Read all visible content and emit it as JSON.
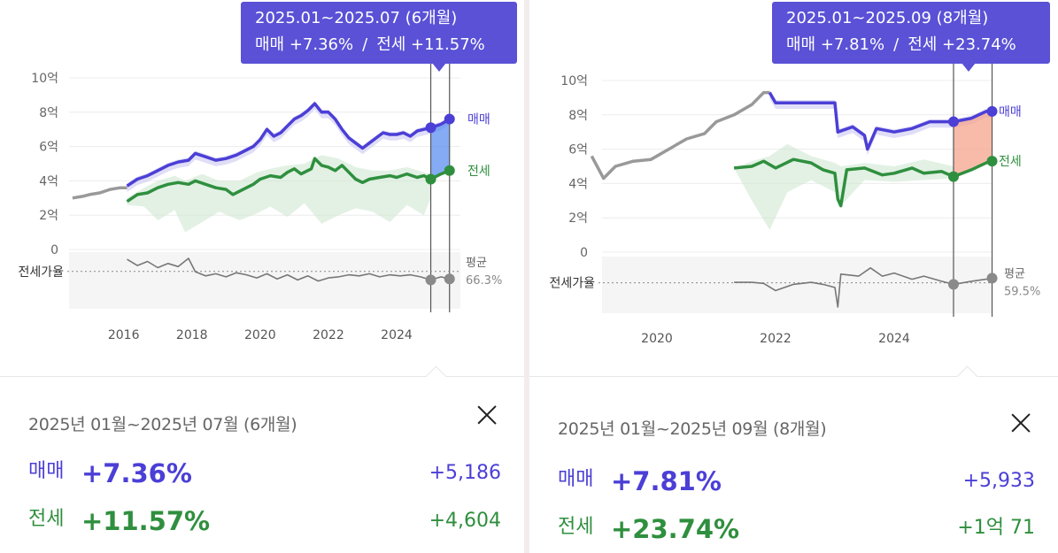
{
  "panels": [
    {
      "tooltip": {
        "period": "2025.01~2025.07 (6개월)",
        "sale_text": "매매 +7.36%",
        "separator": "/",
        "jeonse_text": "전세 +11.57%"
      },
      "card": {
        "period": "2025년 01월~2025년 07월 (6개월)",
        "sale_label": "매매",
        "sale_pct": "+7.36%",
        "sale_amount": "+5,186",
        "jeonse_label": "전세",
        "jeonse_pct": "+11.57%",
        "jeonse_amount": "+4,604"
      }
    },
    {
      "tooltip": {
        "period": "2025.01~2025.09 (8개월)",
        "sale_text": "매매 +7.81%",
        "separator": "/",
        "jeonse_text": "전세 +23.74%"
      },
      "card": {
        "period": "2025년 01월~2025년 09월 (8개월)",
        "sale_label": "매매",
        "sale_pct": "+7.81%",
        "sale_amount": "+5,933",
        "jeonse_label": "전세",
        "jeonse_pct": "+23.74%",
        "jeonse_amount": "+1억 71"
      }
    }
  ],
  "colors": {
    "sale": "#4b3fd6",
    "jeonse": "#2f8f3e",
    "history": "#999999",
    "ratio": "#777777",
    "range_left": "#5b8ff0",
    "range_right": "#f7a48c",
    "tooltip_bg": "#5a51d6"
  },
  "chart_data": [
    {
      "type": "line",
      "ylim": [
        0,
        10
      ],
      "y_ticks": [
        "0",
        "2억",
        "4억",
        "6억",
        "8억",
        "10억"
      ],
      "x_ticks": [
        "2016",
        "2018",
        "2020",
        "2022",
        "2024"
      ],
      "series_labels": {
        "sale": "매매",
        "jeonse": "전세"
      },
      "ratio_label": "전세가율",
      "ratio_avg_label": "평균",
      "ratio_avg_value": "66.3%",
      "sale_history": [
        [
          2014.5,
          3.0
        ],
        [
          2014.8,
          3.1
        ],
        [
          2015.0,
          3.2
        ],
        [
          2015.3,
          3.3
        ],
        [
          2015.6,
          3.5
        ],
        [
          2015.9,
          3.6
        ],
        [
          2016.1,
          3.6
        ]
      ],
      "sale": [
        [
          2016.1,
          3.7
        ],
        [
          2016.4,
          4.1
        ],
        [
          2016.7,
          4.3
        ],
        [
          2017.0,
          4.6
        ],
        [
          2017.3,
          4.9
        ],
        [
          2017.6,
          5.1
        ],
        [
          2017.9,
          5.2
        ],
        [
          2018.1,
          5.6
        ],
        [
          2018.4,
          5.4
        ],
        [
          2018.7,
          5.2
        ],
        [
          2019.0,
          5.3
        ],
        [
          2019.3,
          5.5
        ],
        [
          2019.6,
          5.8
        ],
        [
          2019.8,
          6.0
        ],
        [
          2020.0,
          6.4
        ],
        [
          2020.2,
          7.0
        ],
        [
          2020.4,
          6.6
        ],
        [
          2020.6,
          6.8
        ],
        [
          2020.8,
          7.2
        ],
        [
          2021.0,
          7.6
        ],
        [
          2021.2,
          7.8
        ],
        [
          2021.4,
          8.1
        ],
        [
          2021.6,
          8.5
        ],
        [
          2021.8,
          8.0
        ],
        [
          2022.0,
          8.0
        ],
        [
          2022.2,
          7.6
        ],
        [
          2022.4,
          7.0
        ],
        [
          2022.6,
          6.5
        ],
        [
          2022.8,
          6.2
        ],
        [
          2023.0,
          5.9
        ],
        [
          2023.2,
          6.2
        ],
        [
          2023.4,
          6.5
        ],
        [
          2023.6,
          6.8
        ],
        [
          2023.8,
          6.7
        ],
        [
          2024.0,
          6.7
        ],
        [
          2024.2,
          6.8
        ],
        [
          2024.4,
          6.6
        ],
        [
          2024.6,
          6.9
        ],
        [
          2024.8,
          7.0
        ],
        [
          2025.0,
          7.1
        ],
        [
          2025.3,
          7.3
        ],
        [
          2025.55,
          7.6
        ]
      ],
      "jeonse": [
        [
          2016.1,
          2.8
        ],
        [
          2016.4,
          3.2
        ],
        [
          2016.7,
          3.3
        ],
        [
          2017.0,
          3.6
        ],
        [
          2017.3,
          3.8
        ],
        [
          2017.6,
          3.9
        ],
        [
          2017.9,
          3.8
        ],
        [
          2018.1,
          4.0
        ],
        [
          2018.4,
          3.8
        ],
        [
          2018.7,
          3.6
        ],
        [
          2019.0,
          3.5
        ],
        [
          2019.2,
          3.2
        ],
        [
          2019.5,
          3.5
        ],
        [
          2019.8,
          3.8
        ],
        [
          2020.0,
          4.1
        ],
        [
          2020.3,
          4.3
        ],
        [
          2020.6,
          4.2
        ],
        [
          2020.8,
          4.5
        ],
        [
          2021.0,
          4.7
        ],
        [
          2021.2,
          4.4
        ],
        [
          2021.5,
          4.7
        ],
        [
          2021.6,
          5.3
        ],
        [
          2021.8,
          4.9
        ],
        [
          2022.0,
          4.8
        ],
        [
          2022.2,
          4.6
        ],
        [
          2022.4,
          4.9
        ],
        [
          2022.6,
          4.5
        ],
        [
          2022.8,
          4.1
        ],
        [
          2023.0,
          3.9
        ],
        [
          2023.2,
          4.1
        ],
        [
          2023.5,
          4.2
        ],
        [
          2023.8,
          4.3
        ],
        [
          2024.0,
          4.2
        ],
        [
          2024.3,
          4.4
        ],
        [
          2024.6,
          4.2
        ],
        [
          2024.8,
          4.3
        ],
        [
          2025.0,
          4.1
        ],
        [
          2025.3,
          4.4
        ],
        [
          2025.55,
          4.6
        ]
      ],
      "jeonse_band_low": [
        [
          2016.1,
          2.6
        ],
        [
          2016.6,
          2.5
        ],
        [
          2017.0,
          1.7
        ],
        [
          2017.5,
          2.3
        ],
        [
          2017.8,
          1.0
        ],
        [
          2018.3,
          1.6
        ],
        [
          2018.8,
          2.2
        ],
        [
          2019.4,
          1.7
        ],
        [
          2019.9,
          2.1
        ],
        [
          2020.3,
          2.5
        ],
        [
          2020.8,
          1.9
        ],
        [
          2021.3,
          2.7
        ],
        [
          2021.8,
          1.5
        ],
        [
          2022.3,
          2.0
        ],
        [
          2022.8,
          2.4
        ],
        [
          2023.3,
          2.2
        ],
        [
          2023.8,
          1.6
        ],
        [
          2024.3,
          2.6
        ],
        [
          2024.8,
          2.0
        ],
        [
          2025.0,
          3.0
        ]
      ],
      "jeonse_band_high": [
        [
          2016.1,
          3.0
        ],
        [
          2016.6,
          3.6
        ],
        [
          2017.0,
          4.0
        ],
        [
          2017.5,
          4.3
        ],
        [
          2017.8,
          4.0
        ],
        [
          2018.3,
          4.4
        ],
        [
          2018.8,
          4.0
        ],
        [
          2019.4,
          4.0
        ],
        [
          2019.9,
          4.5
        ],
        [
          2020.3,
          4.7
        ],
        [
          2020.8,
          4.9
        ],
        [
          2021.3,
          5.0
        ],
        [
          2021.8,
          5.5
        ],
        [
          2022.3,
          5.3
        ],
        [
          2022.8,
          4.8
        ],
        [
          2023.3,
          4.6
        ],
        [
          2023.8,
          4.6
        ],
        [
          2024.3,
          4.8
        ],
        [
          2024.8,
          4.5
        ],
        [
          2025.0,
          4.4
        ]
      ],
      "ratio": [
        [
          2016.1,
          0.78
        ],
        [
          2016.4,
          0.72
        ],
        [
          2016.7,
          0.76
        ],
        [
          2017.0,
          0.7
        ],
        [
          2017.3,
          0.74
        ],
        [
          2017.6,
          0.71
        ],
        [
          2017.9,
          0.79
        ],
        [
          2018.1,
          0.66
        ],
        [
          2018.4,
          0.62
        ],
        [
          2018.7,
          0.64
        ],
        [
          2019.0,
          0.61
        ],
        [
          2019.3,
          0.65
        ],
        [
          2019.6,
          0.63
        ],
        [
          2019.9,
          0.6
        ],
        [
          2020.2,
          0.64
        ],
        [
          2020.5,
          0.59
        ],
        [
          2020.8,
          0.63
        ],
        [
          2021.1,
          0.58
        ],
        [
          2021.4,
          0.62
        ],
        [
          2021.7,
          0.57
        ],
        [
          2022.0,
          0.6
        ],
        [
          2022.3,
          0.61
        ],
        [
          2022.6,
          0.63
        ],
        [
          2022.9,
          0.62
        ],
        [
          2023.2,
          0.64
        ],
        [
          2023.5,
          0.61
        ],
        [
          2023.8,
          0.63
        ],
        [
          2024.1,
          0.62
        ],
        [
          2024.4,
          0.63
        ],
        [
          2024.7,
          0.61
        ],
        [
          2025.0,
          0.58
        ],
        [
          2025.3,
          0.61
        ],
        [
          2025.55,
          0.59
        ]
      ],
      "ratio_avg": 0.663,
      "range": [
        "2025-01",
        "2025-07"
      ],
      "range_points": {
        "start": {
          "sale": 7.1,
          "jeonse": 4.1,
          "ratio": 0.58
        },
        "end": {
          "sale": 7.6,
          "jeonse": 4.6,
          "ratio": 0.59
        }
      },
      "grid": true
    },
    {
      "type": "line",
      "ylim": [
        0,
        10
      ],
      "y_ticks": [
        "0",
        "2억",
        "4억",
        "6억",
        "8억",
        "10억"
      ],
      "x_ticks": [
        "2020",
        "2022",
        "2024"
      ],
      "series_labels": {
        "sale": "매매",
        "jeonse": "전세"
      },
      "ratio_label": "전세가율",
      "ratio_avg_label": "평균",
      "ratio_avg_value": "59.5%",
      "sale_history": [
        [
          2018.9,
          5.6
        ],
        [
          2019.1,
          4.3
        ],
        [
          2019.3,
          5.0
        ],
        [
          2019.6,
          5.3
        ],
        [
          2019.9,
          5.4
        ],
        [
          2020.2,
          6.0
        ],
        [
          2020.5,
          6.6
        ],
        [
          2020.8,
          6.9
        ],
        [
          2021.0,
          7.6
        ],
        [
          2021.3,
          8.0
        ],
        [
          2021.6,
          8.6
        ],
        [
          2021.8,
          9.3
        ],
        [
          2021.9,
          9.3
        ]
      ],
      "sale": [
        [
          2021.9,
          9.3
        ],
        [
          2022.0,
          8.7
        ],
        [
          2022.2,
          8.7
        ],
        [
          2022.6,
          8.7
        ],
        [
          2023.0,
          8.7
        ],
        [
          2023.05,
          7.0
        ],
        [
          2023.3,
          7.3
        ],
        [
          2023.5,
          6.8
        ],
        [
          2023.55,
          6.0
        ],
        [
          2023.7,
          7.2
        ],
        [
          2024.0,
          7.0
        ],
        [
          2024.3,
          7.2
        ],
        [
          2024.6,
          7.6
        ],
        [
          2024.9,
          7.6
        ],
        [
          2025.0,
          7.6
        ],
        [
          2025.3,
          7.8
        ],
        [
          2025.55,
          8.2
        ],
        [
          2025.65,
          8.2
        ]
      ],
      "jeonse": [
        [
          2021.3,
          4.9
        ],
        [
          2021.6,
          5.0
        ],
        [
          2021.8,
          5.3
        ],
        [
          2022.0,
          4.9
        ],
        [
          2022.3,
          5.4
        ],
        [
          2022.6,
          5.2
        ],
        [
          2022.8,
          4.8
        ],
        [
          2023.0,
          4.6
        ],
        [
          2023.05,
          3.1
        ],
        [
          2023.1,
          2.7
        ],
        [
          2023.2,
          4.8
        ],
        [
          2023.5,
          4.9
        ],
        [
          2023.8,
          4.5
        ],
        [
          2024.0,
          4.6
        ],
        [
          2024.3,
          4.9
        ],
        [
          2024.5,
          4.6
        ],
        [
          2024.8,
          4.7
        ],
        [
          2025.0,
          4.4
        ],
        [
          2025.3,
          4.8
        ],
        [
          2025.55,
          5.2
        ],
        [
          2025.65,
          5.3
        ]
      ],
      "jeonse_band_low": [
        [
          2021.3,
          4.9
        ],
        [
          2021.6,
          3.0
        ],
        [
          2021.9,
          1.3
        ],
        [
          2022.2,
          3.5
        ],
        [
          2022.6,
          4.2
        ],
        [
          2023.0,
          3.5
        ],
        [
          2023.1,
          2.7
        ],
        [
          2023.5,
          4.2
        ],
        [
          2024.0,
          4.1
        ],
        [
          2024.5,
          4.2
        ],
        [
          2025.0,
          4.3
        ]
      ],
      "jeonse_band_high": [
        [
          2021.3,
          4.9
        ],
        [
          2021.6,
          5.3
        ],
        [
          2021.9,
          5.6
        ],
        [
          2022.2,
          6.3
        ],
        [
          2022.6,
          5.6
        ],
        [
          2023.0,
          5.2
        ],
        [
          2023.1,
          5.0
        ],
        [
          2023.5,
          5.2
        ],
        [
          2024.0,
          5.0
        ],
        [
          2024.5,
          5.4
        ],
        [
          2025.0,
          5.0
        ]
      ],
      "ratio": [
        [
          2021.3,
          0.6
        ],
        [
          2021.6,
          0.6
        ],
        [
          2021.8,
          0.59
        ],
        [
          2022.0,
          0.52
        ],
        [
          2022.3,
          0.58
        ],
        [
          2022.6,
          0.6
        ],
        [
          2022.8,
          0.58
        ],
        [
          2023.0,
          0.55
        ],
        [
          2023.05,
          0.36
        ],
        [
          2023.1,
          0.68
        ],
        [
          2023.4,
          0.66
        ],
        [
          2023.6,
          0.74
        ],
        [
          2023.8,
          0.66
        ],
        [
          2024.0,
          0.69
        ],
        [
          2024.3,
          0.63
        ],
        [
          2024.5,
          0.66
        ],
        [
          2024.8,
          0.61
        ],
        [
          2025.0,
          0.58
        ],
        [
          2025.3,
          0.61
        ],
        [
          2025.55,
          0.63
        ],
        [
          2025.65,
          0.64
        ]
      ],
      "ratio_avg": 0.595,
      "range": [
        "2025-01",
        "2025-09"
      ],
      "range_points": {
        "start": {
          "sale": 7.6,
          "jeonse": 4.4,
          "ratio": 0.58
        },
        "end": {
          "sale": 8.2,
          "jeonse": 5.3,
          "ratio": 0.64
        }
      },
      "grid": true
    }
  ]
}
